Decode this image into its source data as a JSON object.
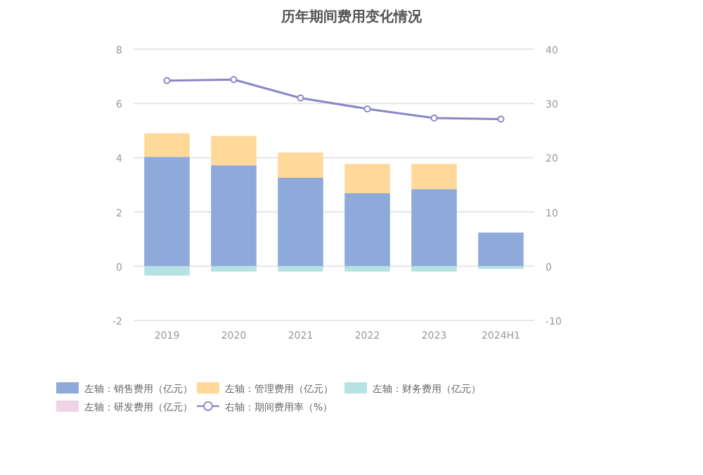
{
  "chart_data": {
    "type": "bar",
    "stacked": true,
    "title": "历年期间费用变化情况",
    "categories": [
      "2019",
      "2020",
      "2021",
      "2022",
      "2023",
      "2024H1"
    ],
    "series": [
      {
        "name": "左轴：销售费用（亿元）",
        "color": "#8eaadb",
        "values": [
          4.03,
          3.72,
          3.26,
          2.69,
          2.84,
          1.24
        ]
      },
      {
        "name": "左轴：管理费用（亿元）",
        "color": "#ffd99a",
        "values": [
          0.87,
          1.08,
          0.93,
          1.08,
          0.93,
          null
        ]
      },
      {
        "name": "左轴：财务费用（亿元）",
        "color": "#b5e3e3",
        "values": [
          -0.35,
          -0.2,
          -0.2,
          -0.2,
          -0.2,
          -0.1
        ]
      },
      {
        "name": "左轴：研发费用（亿元）",
        "color": "#f0d3e4",
        "values": [
          null,
          null,
          null,
          null,
          null,
          null
        ]
      },
      {
        "name": "右轴：期间费用率（%）",
        "type": "line",
        "axis": "y2",
        "color": "#8a86c8",
        "marker": "circle",
        "values": [
          34.2,
          34.4,
          31.0,
          29.0,
          27.3,
          27.1
        ]
      }
    ],
    "ylim": [
      -2,
      8
    ],
    "yticks": [
      -2,
      0,
      2,
      4,
      6,
      8
    ],
    "y2lim": [
      -10,
      40
    ],
    "y2ticks": [
      -10,
      0,
      10,
      20,
      30,
      40
    ],
    "grid": "y",
    "legend": "bottom"
  }
}
